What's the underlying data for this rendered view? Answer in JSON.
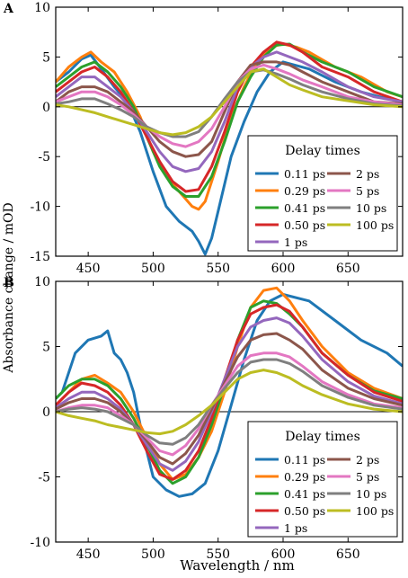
{
  "figure": {
    "xlabel": "Wavelength / nm",
    "ylabel": "Absorbance change / mOD"
  },
  "chart_data": [
    {
      "type": "line",
      "panel_label": "A",
      "xlim": [
        425,
        692
      ],
      "ylim": [
        -15,
        10
      ],
      "xticks": [
        450,
        500,
        550,
        600,
        650
      ],
      "yticks": [
        -15,
        -10,
        -5,
        0,
        5,
        10
      ],
      "xlabel": "",
      "ylabel": "Absorbance change / mOD",
      "zero_line": true,
      "legend": {
        "title": "Delay times",
        "placement": "lower-right",
        "columns": 2
      },
      "series": [
        {
          "name": "0.11 ps",
          "color": "#1f77b4",
          "x": [
            425,
            435,
            445,
            452,
            460,
            470,
            480,
            490,
            500,
            510,
            520,
            530,
            535,
            540,
            545,
            550,
            560,
            570,
            580,
            590,
            600,
            620,
            640,
            660,
            680,
            692
          ],
          "y": [
            2.5,
            3.5,
            4.8,
            5.2,
            3.8,
            2.0,
            0.5,
            -2.5,
            -6.5,
            -10.0,
            -11.5,
            -12.5,
            -13.5,
            -14.8,
            -13.2,
            -10.5,
            -5.0,
            -1.5,
            1.5,
            3.5,
            4.5,
            3.8,
            2.5,
            1.5,
            0.8,
            0.5
          ]
        },
        {
          "name": "0.29 ps",
          "color": "#ff7f0e",
          "x": [
            425,
            435,
            445,
            452,
            460,
            470,
            480,
            490,
            500,
            510,
            520,
            530,
            535,
            540,
            550,
            560,
            570,
            580,
            590,
            600,
            610,
            620,
            640,
            660,
            680,
            692
          ],
          "y": [
            2.5,
            4.0,
            5.0,
            5.5,
            4.5,
            3.5,
            1.5,
            -1.0,
            -4.5,
            -7.0,
            -8.5,
            -10.0,
            -10.3,
            -9.5,
            -5.5,
            -1.0,
            2.0,
            4.5,
            6.0,
            6.3,
            6.0,
            5.5,
            4.0,
            3.0,
            1.5,
            1.0
          ]
        },
        {
          "name": "0.41 ps",
          "color": "#2ca02c",
          "x": [
            425,
            435,
            445,
            455,
            465,
            475,
            485,
            495,
            505,
            515,
            525,
            535,
            545,
            555,
            565,
            575,
            585,
            595,
            605,
            615,
            630,
            650,
            670,
            692
          ],
          "y": [
            2.0,
            3.0,
            4.0,
            4.5,
            3.5,
            2.0,
            0.0,
            -3.0,
            -6.0,
            -8.0,
            -9.0,
            -9.0,
            -7.0,
            -3.5,
            0.5,
            3.0,
            5.0,
            6.2,
            6.3,
            5.5,
            4.5,
            3.5,
            2.0,
            1.0
          ]
        },
        {
          "name": "0.50 ps",
          "color": "#d62728",
          "x": [
            425,
            435,
            445,
            455,
            465,
            475,
            485,
            495,
            505,
            515,
            525,
            535,
            545,
            555,
            565,
            575,
            585,
            595,
            605,
            615,
            630,
            650,
            670,
            692
          ],
          "y": [
            1.5,
            2.5,
            3.5,
            4.0,
            3.0,
            1.5,
            -0.5,
            -3.0,
            -5.5,
            -7.5,
            -8.5,
            -8.3,
            -6.0,
            -2.5,
            1.5,
            4.0,
            5.5,
            6.5,
            6.2,
            5.5,
            4.0,
            3.0,
            1.5,
            0.5
          ]
        },
        {
          "name": "1 ps",
          "color": "#9467bd",
          "x": [
            425,
            435,
            445,
            455,
            465,
            475,
            485,
            495,
            505,
            515,
            525,
            535,
            545,
            555,
            565,
            575,
            585,
            595,
            605,
            615,
            630,
            650,
            670,
            692
          ],
          "y": [
            1.0,
            2.0,
            3.0,
            3.0,
            2.0,
            1.0,
            -0.5,
            -2.5,
            -4.5,
            -6.0,
            -6.5,
            -6.2,
            -4.5,
            -1.5,
            2.0,
            4.0,
            5.0,
            5.5,
            5.0,
            4.5,
            3.5,
            2.0,
            1.0,
            0.5
          ]
        },
        {
          "name": "2 ps",
          "color": "#8c564b",
          "x": [
            425,
            435,
            445,
            455,
            465,
            475,
            485,
            495,
            505,
            515,
            525,
            535,
            545,
            555,
            565,
            575,
            585,
            595,
            605,
            615,
            630,
            650,
            670,
            692
          ],
          "y": [
            0.5,
            1.5,
            2.0,
            2.0,
            1.5,
            0.5,
            -0.5,
            -2.0,
            -3.5,
            -4.5,
            -5.0,
            -4.8,
            -3.5,
            -0.5,
            2.5,
            4.2,
            4.5,
            4.5,
            4.2,
            3.5,
            2.5,
            1.5,
            0.5,
            0.3
          ]
        },
        {
          "name": "5 ps",
          "color": "#e377c2",
          "x": [
            425,
            435,
            445,
            455,
            465,
            475,
            485,
            495,
            505,
            515,
            525,
            535,
            545,
            555,
            565,
            575,
            585,
            595,
            605,
            615,
            630,
            650,
            670,
            692
          ],
          "y": [
            0.5,
            1.0,
            1.5,
            1.5,
            1.0,
            0.2,
            -0.8,
            -2.0,
            -3.0,
            -3.7,
            -4.0,
            -3.5,
            -2.2,
            0.0,
            2.5,
            3.8,
            4.2,
            3.8,
            3.3,
            2.7,
            2.0,
            1.0,
            0.5,
            0.2
          ]
        },
        {
          "name": "10 ps",
          "color": "#7f7f7f",
          "x": [
            425,
            435,
            445,
            455,
            465,
            475,
            485,
            495,
            505,
            515,
            525,
            535,
            545,
            555,
            565,
            575,
            585,
            595,
            605,
            615,
            630,
            650,
            670,
            692
          ],
          "y": [
            0.3,
            0.5,
            0.8,
            0.8,
            0.3,
            -0.3,
            -1.0,
            -2.0,
            -2.6,
            -3.0,
            -3.0,
            -2.5,
            -1.0,
            0.8,
            2.5,
            3.5,
            3.7,
            3.3,
            2.8,
            2.2,
            1.5,
            0.8,
            0.3,
            0.1
          ]
        },
        {
          "name": "100 ps",
          "color": "#bcbd22",
          "x": [
            425,
            435,
            445,
            455,
            465,
            475,
            485,
            495,
            505,
            515,
            525,
            535,
            545,
            555,
            565,
            575,
            585,
            595,
            605,
            615,
            630,
            650,
            670,
            692
          ],
          "y": [
            0.2,
            0.0,
            -0.3,
            -0.6,
            -1.0,
            -1.4,
            -1.8,
            -2.2,
            -2.6,
            -2.8,
            -2.6,
            -2.0,
            -1.0,
            0.5,
            2.0,
            3.5,
            3.8,
            3.0,
            2.2,
            1.7,
            1.0,
            0.6,
            0.2,
            0.0
          ]
        }
      ]
    },
    {
      "type": "line",
      "panel_label": "B",
      "xlim": [
        425,
        692
      ],
      "ylim": [
        -10,
        10
      ],
      "xticks": [
        450,
        500,
        550,
        600,
        650
      ],
      "yticks": [
        -10,
        -5,
        0,
        5,
        10
      ],
      "xlabel": "Wavelength / nm",
      "ylabel": "Absorbance change / mOD",
      "zero_line": true,
      "legend": {
        "title": "Delay times",
        "placement": "lower-right",
        "columns": 2
      },
      "series": [
        {
          "name": "0.11 ps",
          "color": "#1f77b4",
          "x": [
            425,
            430,
            440,
            450,
            460,
            465,
            470,
            475,
            480,
            485,
            490,
            495,
            500,
            510,
            520,
            530,
            540,
            550,
            560,
            570,
            580,
            590,
            600,
            620,
            640,
            660,
            680,
            692
          ],
          "y": [
            1.0,
            1.5,
            4.5,
            5.5,
            5.8,
            6.2,
            4.5,
            4.0,
            3.0,
            1.5,
            -1.0,
            -3.0,
            -5.0,
            -6.0,
            -6.5,
            -6.3,
            -5.5,
            -3.0,
            0.5,
            4.0,
            7.0,
            8.5,
            9.0,
            8.5,
            7.0,
            5.5,
            4.5,
            3.5
          ]
        },
        {
          "name": "0.29 ps",
          "color": "#ff7f0e",
          "x": [
            425,
            435,
            445,
            455,
            465,
            475,
            485,
            495,
            505,
            515,
            525,
            535,
            545,
            555,
            565,
            575,
            585,
            595,
            605,
            615,
            630,
            650,
            670,
            692
          ],
          "y": [
            0.5,
            1.5,
            2.5,
            2.8,
            2.2,
            1.5,
            0.0,
            -2.0,
            -4.0,
            -5.2,
            -4.8,
            -3.5,
            -1.5,
            1.5,
            5.0,
            8.0,
            9.3,
            9.5,
            8.5,
            7.0,
            5.0,
            3.0,
            1.8,
            1.0
          ]
        },
        {
          "name": "0.41 ps",
          "color": "#2ca02c",
          "x": [
            425,
            435,
            445,
            455,
            465,
            475,
            485,
            495,
            505,
            515,
            525,
            535,
            545,
            555,
            565,
            575,
            585,
            595,
            605,
            615,
            630,
            650,
            670,
            692
          ],
          "y": [
            1.0,
            2.0,
            2.5,
            2.5,
            2.0,
            1.0,
            -0.5,
            -2.5,
            -4.5,
            -5.5,
            -5.0,
            -3.5,
            -1.0,
            2.0,
            5.5,
            8.0,
            8.5,
            8.3,
            7.5,
            6.5,
            4.5,
            2.8,
            1.6,
            1.0
          ]
        },
        {
          "name": "0.50 ps",
          "color": "#d62728",
          "x": [
            425,
            435,
            445,
            455,
            465,
            475,
            485,
            495,
            505,
            515,
            525,
            535,
            545,
            555,
            565,
            575,
            585,
            595,
            605,
            615,
            630,
            650,
            670,
            692
          ],
          "y": [
            0.5,
            1.5,
            2.2,
            2.0,
            1.5,
            0.5,
            -1.0,
            -3.0,
            -4.8,
            -5.2,
            -4.5,
            -3.0,
            -0.5,
            2.5,
            5.5,
            7.5,
            8.0,
            8.2,
            7.7,
            6.5,
            4.5,
            2.8,
            1.5,
            0.8
          ]
        },
        {
          "name": "1 ps",
          "color": "#9467bd",
          "x": [
            425,
            435,
            445,
            455,
            465,
            475,
            485,
            495,
            505,
            515,
            525,
            535,
            545,
            555,
            565,
            575,
            585,
            595,
            605,
            615,
            630,
            650,
            670,
            692
          ],
          "y": [
            0.3,
            1.0,
            1.5,
            1.5,
            1.0,
            0.2,
            -1.0,
            -2.5,
            -4.0,
            -4.5,
            -3.8,
            -2.3,
            0.0,
            2.5,
            5.0,
            6.5,
            7.0,
            7.2,
            6.8,
            5.8,
            4.0,
            2.3,
            1.2,
            0.6
          ]
        },
        {
          "name": "2 ps",
          "color": "#8c564b",
          "x": [
            425,
            435,
            445,
            455,
            465,
            475,
            485,
            495,
            505,
            515,
            525,
            535,
            545,
            555,
            565,
            575,
            585,
            595,
            605,
            615,
            630,
            650,
            670,
            692
          ],
          "y": [
            0.2,
            0.7,
            1.0,
            1.0,
            0.7,
            0.0,
            -1.0,
            -2.2,
            -3.5,
            -4.0,
            -3.2,
            -1.8,
            0.2,
            2.2,
            4.2,
            5.5,
            5.9,
            6.0,
            5.5,
            4.8,
            3.2,
            1.8,
            1.0,
            0.5
          ]
        },
        {
          "name": "5 ps",
          "color": "#e377c2",
          "x": [
            425,
            435,
            445,
            455,
            465,
            475,
            485,
            495,
            505,
            515,
            525,
            535,
            545,
            555,
            565,
            575,
            585,
            595,
            605,
            615,
            630,
            650,
            670,
            692
          ],
          "y": [
            0.0,
            0.3,
            0.5,
            0.5,
            0.3,
            -0.3,
            -1.0,
            -2.0,
            -3.0,
            -3.3,
            -2.6,
            -1.3,
            0.5,
            2.0,
            3.5,
            4.3,
            4.5,
            4.5,
            4.2,
            3.5,
            2.3,
            1.3,
            0.6,
            0.3
          ]
        },
        {
          "name": "10 ps",
          "color": "#7f7f7f",
          "x": [
            425,
            435,
            445,
            455,
            465,
            475,
            485,
            495,
            505,
            515,
            525,
            535,
            545,
            555,
            565,
            575,
            585,
            595,
            605,
            615,
            630,
            650,
            670,
            692
          ],
          "y": [
            0.0,
            0.2,
            0.3,
            0.2,
            0.0,
            -0.5,
            -1.0,
            -1.8,
            -2.4,
            -2.5,
            -2.0,
            -1.0,
            0.5,
            1.8,
            3.0,
            3.8,
            4.0,
            4.0,
            3.7,
            3.1,
            2.0,
            1.1,
            0.5,
            0.2
          ]
        },
        {
          "name": "100 ps",
          "color": "#bcbd22",
          "x": [
            425,
            435,
            445,
            455,
            465,
            475,
            485,
            495,
            505,
            515,
            525,
            535,
            545,
            555,
            565,
            575,
            585,
            595,
            605,
            615,
            630,
            650,
            670,
            692
          ],
          "y": [
            0.0,
            -0.3,
            -0.5,
            -0.7,
            -1.0,
            -1.2,
            -1.4,
            -1.6,
            -1.7,
            -1.5,
            -1.0,
            -0.3,
            0.5,
            1.5,
            2.5,
            3.0,
            3.2,
            3.0,
            2.6,
            2.0,
            1.3,
            0.6,
            0.2,
            0.0
          ]
        }
      ]
    }
  ]
}
